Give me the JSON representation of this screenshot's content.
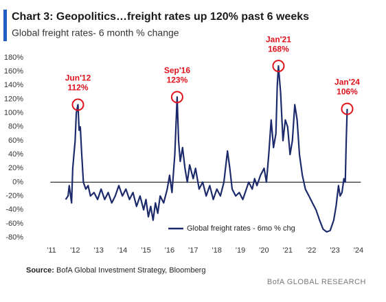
{
  "chart_data": {
    "type": "line",
    "title": "Chart 3: Geopolitics…freight rates up 120% past 6 weeks",
    "subtitle": "Global freight rates- 6 month % change",
    "source_label": "Source:",
    "source": "BofA Global Investment Strategy, Bloomberg",
    "footer": "BofA GLOBAL RESEARCH",
    "legend": "bottom-right",
    "xlim": [
      2010.95,
      2024.1
    ],
    "xticks": [
      {
        "value": 2011,
        "label": "'11"
      },
      {
        "value": 2012,
        "label": "'12"
      },
      {
        "value": 2013,
        "label": "'13"
      },
      {
        "value": 2014,
        "label": "'14"
      },
      {
        "value": 2015,
        "label": "'15"
      },
      {
        "value": 2016,
        "label": "'16"
      },
      {
        "value": 2017,
        "label": "'17"
      },
      {
        "value": 2018,
        "label": "'18"
      },
      {
        "value": 2019,
        "label": "'19"
      },
      {
        "value": 2020,
        "label": "'20"
      },
      {
        "value": 2021,
        "label": "'21"
      },
      {
        "value": 2022,
        "label": "'22"
      },
      {
        "value": 2023,
        "label": "'23"
      },
      {
        "value": 2024,
        "label": "'24"
      }
    ],
    "ylim": [
      -80,
      180
    ],
    "yticks": [
      {
        "value": -80,
        "label": "-80%"
      },
      {
        "value": -60,
        "label": "-60%"
      },
      {
        "value": -40,
        "label": "-40%"
      },
      {
        "value": -20,
        "label": "-20%"
      },
      {
        "value": 0,
        "label": "0%"
      },
      {
        "value": 20,
        "label": "20%"
      },
      {
        "value": 40,
        "label": "40%"
      },
      {
        "value": 60,
        "label": "60%"
      },
      {
        "value": 80,
        "label": "80%"
      },
      {
        "value": 100,
        "label": "100%"
      },
      {
        "value": 120,
        "label": "120%"
      },
      {
        "value": 140,
        "label": "140%"
      },
      {
        "value": 160,
        "label": "160%"
      },
      {
        "value": 180,
        "label": "180%"
      }
    ],
    "zero_line": true,
    "series": [
      {
        "name": "Global freight rates - 6mo % chg",
        "color": "#1c2a6b",
        "x": [
          2011.6,
          2011.7,
          2011.75,
          2011.85,
          2011.9,
          2012.0,
          2012.05,
          2012.12,
          2012.17,
          2012.22,
          2012.28,
          2012.35,
          2012.45,
          2012.55,
          2012.65,
          2012.8,
          2012.95,
          2013.1,
          2013.25,
          2013.4,
          2013.55,
          2013.7,
          2013.85,
          2014.0,
          2014.15,
          2014.3,
          2014.45,
          2014.6,
          2014.75,
          2014.9,
          2015.0,
          2015.1,
          2015.2,
          2015.3,
          2015.4,
          2015.5,
          2015.6,
          2015.75,
          2015.9,
          2016.0,
          2016.1,
          2016.22,
          2016.32,
          2016.38,
          2016.45,
          2016.55,
          2016.65,
          2016.75,
          2016.85,
          2017.0,
          2017.1,
          2017.25,
          2017.4,
          2017.55,
          2017.7,
          2017.85,
          2018.0,
          2018.15,
          2018.3,
          2018.45,
          2018.55,
          2018.65,
          2018.8,
          2018.95,
          2019.1,
          2019.2,
          2019.35,
          2019.5,
          2019.6,
          2019.7,
          2019.85,
          2020.0,
          2020.1,
          2020.2,
          2020.3,
          2020.4,
          2020.5,
          2020.56,
          2020.61,
          2020.7,
          2020.8,
          2020.9,
          2021.0,
          2021.1,
          2021.2,
          2021.3,
          2021.4,
          2021.5,
          2021.62,
          2021.75,
          2021.9,
          2022.05,
          2022.2,
          2022.35,
          2022.5,
          2022.65,
          2022.8,
          2022.95,
          2023.05,
          2023.15,
          2023.22,
          2023.3,
          2023.38,
          2023.44,
          2023.48,
          2023.52
        ],
        "values": [
          -25,
          -20,
          -5,
          -30,
          20,
          60,
          100,
          112,
          75,
          80,
          40,
          0,
          -10,
          -5,
          -20,
          -15,
          -25,
          -10,
          -25,
          -15,
          -30,
          -20,
          -5,
          -20,
          -10,
          -25,
          -15,
          -35,
          -20,
          -40,
          -25,
          -50,
          -35,
          -55,
          -30,
          -45,
          -20,
          -30,
          -10,
          10,
          -15,
          40,
          123,
          60,
          30,
          50,
          20,
          0,
          25,
          5,
          20,
          -10,
          0,
          -20,
          -5,
          -25,
          -10,
          -20,
          0,
          45,
          20,
          -10,
          -20,
          -15,
          -25,
          -15,
          0,
          -10,
          5,
          -5,
          10,
          20,
          0,
          40,
          90,
          50,
          70,
          140,
          168,
          130,
          60,
          90,
          80,
          40,
          60,
          112,
          90,
          40,
          10,
          -10,
          -20,
          -30,
          -40,
          -55,
          -68,
          -72,
          -70,
          -55,
          -35,
          -5,
          -20,
          -15,
          5,
          0,
          60,
          106
        ]
      }
    ],
    "annotations": [
      {
        "label": "Jun'12",
        "value_label": "112%",
        "x": 2012.12,
        "value": 112
      },
      {
        "label": "Sep'16",
        "value_label": "123%",
        "x": 2016.32,
        "value": 123
      },
      {
        "label": "Jan'21",
        "value_label": "168%",
        "x": 2020.61,
        "value": 168
      },
      {
        "label": "Jan'24",
        "value_label": "106%",
        "x": 2023.52,
        "value": 106
      }
    ]
  }
}
